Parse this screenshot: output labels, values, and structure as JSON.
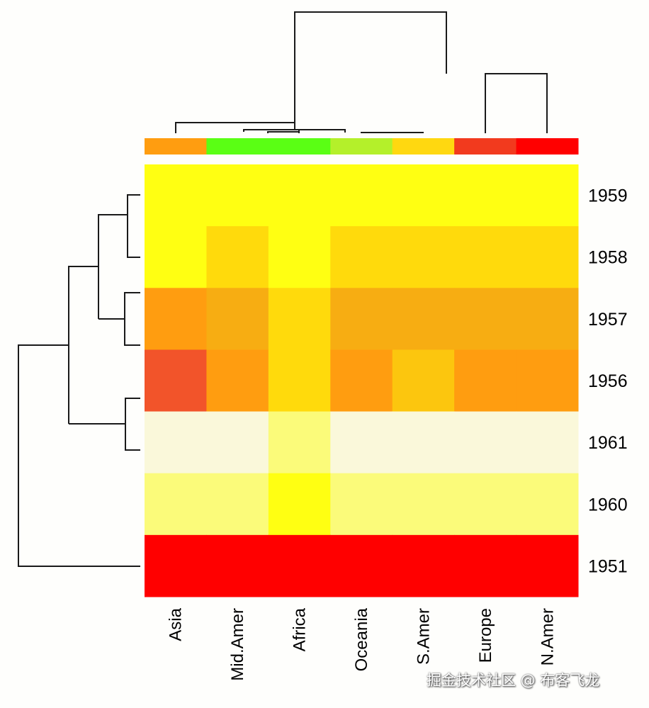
{
  "chart_data": {
    "type": "heatmap",
    "columns": [
      "Asia",
      "Mid.Amer",
      "Africa",
      "Oceania",
      "S.Amer",
      "Europe",
      "N.Amer"
    ],
    "rows": [
      "1959",
      "1958",
      "1957",
      "1956",
      "1961",
      "1960",
      "1951"
    ],
    "palette": [
      "#ff0000",
      "#f2542a",
      "#ff9d10",
      "#f7ad12",
      "#fcc60e",
      "#ffda0c",
      "#ffff12",
      "#fbfb7a",
      "#faf8da"
    ],
    "cells": [
      [
        6,
        6,
        6,
        6,
        6,
        6,
        6
      ],
      [
        6,
        5,
        6,
        5,
        5,
        5,
        5
      ],
      [
        2,
        3,
        5,
        3,
        3,
        3,
        3
      ],
      [
        1,
        2,
        5,
        2,
        4,
        2,
        2
      ],
      [
        8,
        8,
        7,
        8,
        8,
        8,
        8
      ],
      [
        7,
        7,
        6,
        7,
        7,
        7,
        7
      ],
      [
        0,
        0,
        0,
        0,
        0,
        0,
        0
      ]
    ],
    "column_side_colors": [
      "#ff9d10",
      "#5aff14",
      "#5aff14",
      "#b4f02a",
      "#ffd810",
      "#f23a1e",
      "#ff0000"
    ],
    "row_dendrogram": true,
    "column_dendrogram": true
  },
  "watermark": "掘金技术社区 @ 布客飞龙"
}
